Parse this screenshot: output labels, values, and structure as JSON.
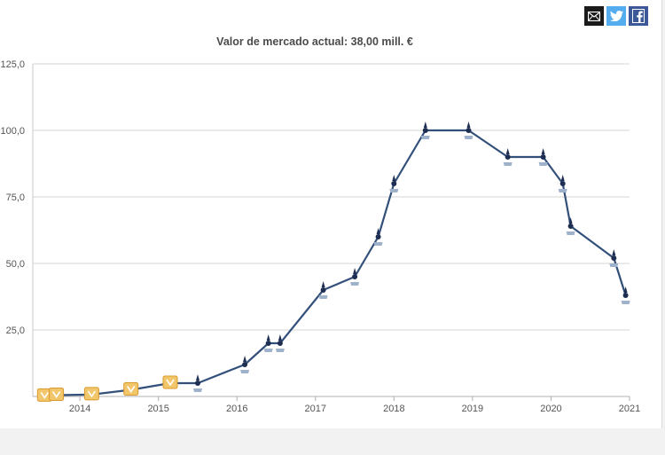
{
  "share": {
    "email_icon": "email-icon",
    "twitter_icon": "twitter-icon",
    "facebook_icon": "facebook-icon"
  },
  "chart_data": {
    "type": "line",
    "title": "Valor de mercado actual: 38,00 mill. €",
    "xlabel": "",
    "ylabel": "",
    "x_ticks": [
      "2014",
      "2015",
      "2016",
      "2017",
      "2018",
      "2019",
      "2020",
      "2021"
    ],
    "y_ticks": [
      "25,0",
      "50,0",
      "75,0",
      "100,0",
      "125,0"
    ],
    "xlim": [
      2013.4,
      2021.0
    ],
    "ylim": [
      0,
      125
    ],
    "grid": true,
    "line_color": "#33507a",
    "series": [
      {
        "points": [
          [
            2013.55,
            0.2
          ],
          [
            2013.7,
            0.5
          ],
          [
            2014.15,
            0.7
          ],
          [
            2014.65,
            2.5
          ],
          [
            2015.15,
            5.0
          ],
          [
            2015.5,
            5.0
          ],
          [
            2016.1,
            12.0
          ],
          [
            2016.4,
            20.0
          ],
          [
            2016.55,
            20.0
          ],
          [
            2017.1,
            40.0
          ],
          [
            2017.5,
            45.0
          ],
          [
            2017.8,
            60.0
          ],
          [
            2018.0,
            80.0
          ],
          [
            2018.4,
            100.0
          ],
          [
            2018.95,
            100.0
          ],
          [
            2019.45,
            90.0
          ],
          [
            2019.9,
            90.0
          ],
          [
            2020.15,
            80.0
          ],
          [
            2020.25,
            64.0
          ],
          [
            2020.8,
            52.0
          ],
          [
            2020.95,
            38.0
          ]
        ]
      }
    ]
  }
}
